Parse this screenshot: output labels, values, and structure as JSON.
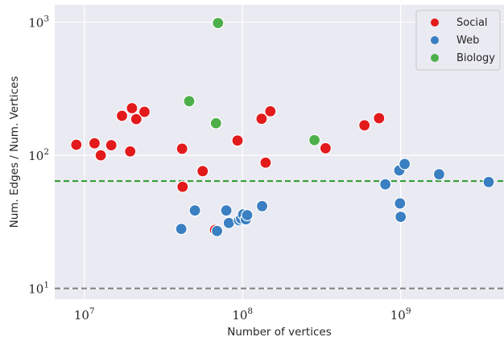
{
  "chart_data": {
    "type": "scatter",
    "xlabel": "Number of vertices",
    "ylabel": "Num. Edges / Num. Vertices",
    "xscale": "log",
    "yscale": "log",
    "xlim": [
      6500000,
      4500000000
    ],
    "ylim": [
      8.3,
      1350
    ],
    "x_ticks": [
      {
        "value": 10000000,
        "base": "10",
        "exp": "7"
      },
      {
        "value": 100000000,
        "base": "10",
        "exp": "8"
      },
      {
        "value": 1000000000,
        "base": "10",
        "exp": "9"
      }
    ],
    "y_ticks": [
      {
        "value": 10,
        "base": "10",
        "exp": "1"
      },
      {
        "value": 100,
        "base": "10",
        "exp": "2"
      },
      {
        "value": 1000,
        "base": "10",
        "exp": "3"
      }
    ],
    "grid": true,
    "legend_position": "top-right",
    "reference_lines": [
      {
        "y": 64,
        "color": "#2a9a2a",
        "style": "dashed"
      },
      {
        "y": 10,
        "color": "#808080",
        "style": "dashed"
      }
    ],
    "series": [
      {
        "name": "Social",
        "color": "#e31a1c",
        "points": [
          [
            8900000,
            120
          ],
          [
            11600000,
            123
          ],
          [
            12700000,
            100
          ],
          [
            14800000,
            119
          ],
          [
            17300000,
            198
          ],
          [
            19500000,
            107
          ],
          [
            20000000,
            226
          ],
          [
            21300000,
            187
          ],
          [
            24000000,
            212
          ],
          [
            41500000,
            112
          ],
          [
            41800000,
            58
          ],
          [
            56000000,
            76
          ],
          [
            67000000,
            27.5
          ],
          [
            93000000,
            129
          ],
          [
            132000000,
            188
          ],
          [
            140000000,
            88
          ],
          [
            150000000,
            214
          ],
          [
            335000000,
            113
          ],
          [
            590000000,
            168
          ],
          [
            730000000,
            190
          ]
        ]
      },
      {
        "name": "Web",
        "color": "#3a7fc1",
        "points": [
          [
            41000000,
            28
          ],
          [
            50000000,
            38.5
          ],
          [
            69000000,
            27
          ],
          [
            79000000,
            38.5
          ],
          [
            82000000,
            31
          ],
          [
            95000000,
            32.5
          ],
          [
            98000000,
            33.5
          ],
          [
            101000000,
            36
          ],
          [
            105000000,
            33
          ],
          [
            107000000,
            35.5
          ],
          [
            133000000,
            41.5
          ],
          [
            800000000,
            60.5
          ],
          [
            980000000,
            77
          ],
          [
            990000000,
            43.5
          ],
          [
            1000000000,
            34.5
          ],
          [
            1060000000,
            86
          ],
          [
            1750000000,
            72
          ],
          [
            3600000000,
            63
          ]
        ]
      },
      {
        "name": "Biology",
        "color": "#4daf4a",
        "points": [
          [
            46000000,
            255
          ],
          [
            68000000,
            174
          ],
          [
            70000000,
            985
          ],
          [
            285000000,
            130
          ]
        ]
      }
    ]
  }
}
